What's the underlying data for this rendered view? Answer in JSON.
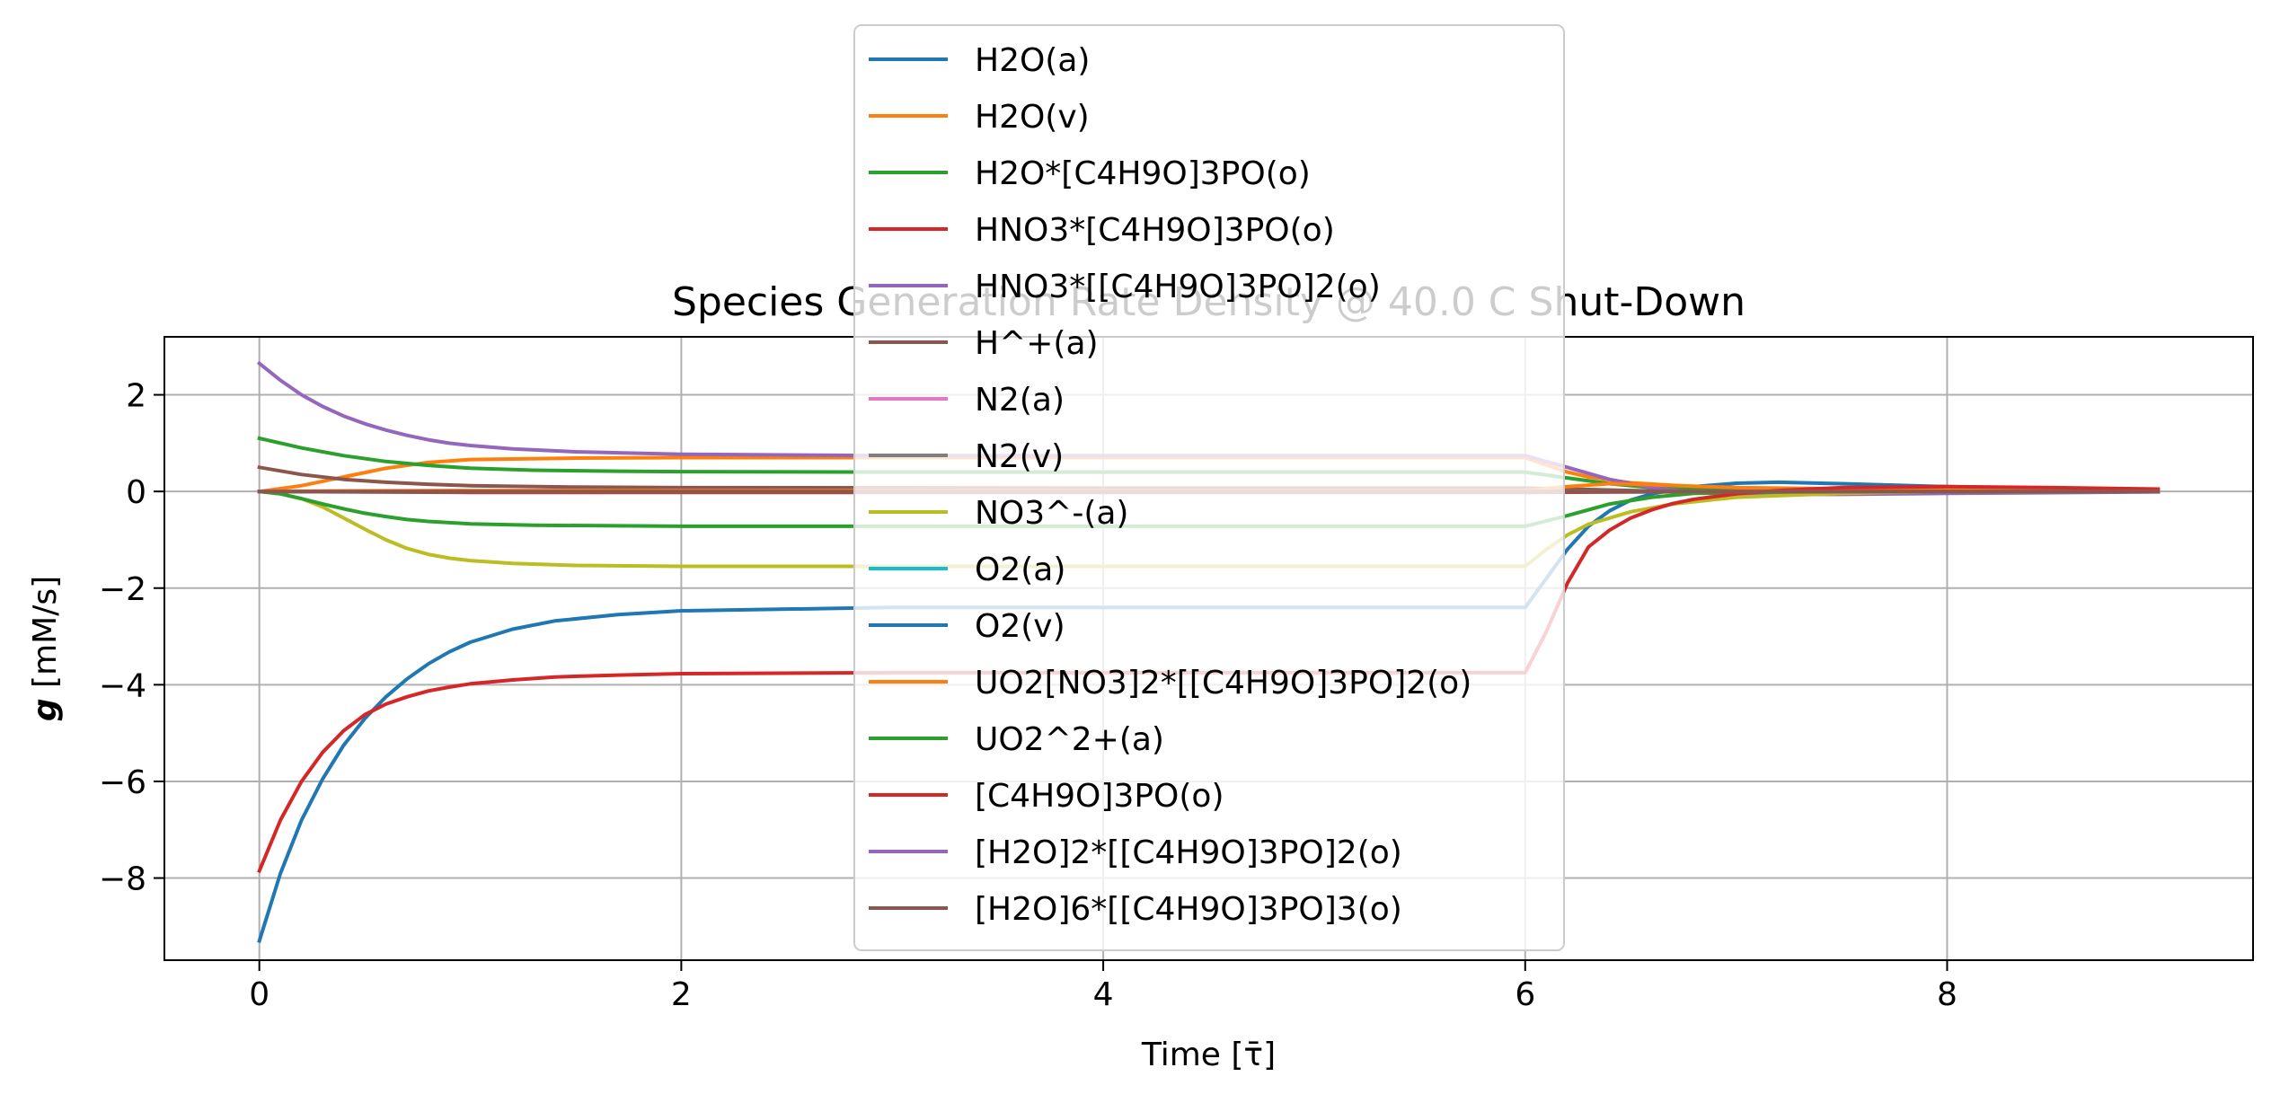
{
  "chart_data": {
    "type": "line",
    "title": "Species Generation Rate Density @ 40.0 C Shut-Down",
    "xlabel": "Time [τ̄]",
    "ylabel_symbol": "g",
    "ylabel_unit": " [mM/s]",
    "xlim": [
      -0.45,
      9.45
    ],
    "ylim": [
      -9.7,
      3.2
    ],
    "xticks": [
      0,
      2,
      4,
      6,
      8
    ],
    "yticks": [
      -8,
      -6,
      -4,
      -2,
      0,
      2
    ],
    "xtick_labels": [
      "0",
      "2",
      "4",
      "6",
      "8"
    ],
    "ytick_labels": [
      "−8",
      "−6",
      "−4",
      "−2",
      "0",
      "2"
    ],
    "grid": true,
    "legend_position": "upper-center",
    "series": [
      {
        "name": "H2O(a)",
        "color": "#1f77b4",
        "points": [
          [
            0,
            -9.3
          ],
          [
            0.1,
            -7.9
          ],
          [
            0.2,
            -6.8
          ],
          [
            0.3,
            -5.95
          ],
          [
            0.4,
            -5.25
          ],
          [
            0.5,
            -4.7
          ],
          [
            0.6,
            -4.25
          ],
          [
            0.7,
            -3.88
          ],
          [
            0.8,
            -3.57
          ],
          [
            0.9,
            -3.32
          ],
          [
            1.0,
            -3.12
          ],
          [
            1.2,
            -2.85
          ],
          [
            1.4,
            -2.68
          ],
          [
            1.7,
            -2.55
          ],
          [
            2.0,
            -2.47
          ],
          [
            3.0,
            -2.4
          ],
          [
            4.0,
            -2.4
          ],
          [
            5.0,
            -2.4
          ],
          [
            6.0,
            -2.4
          ],
          [
            6.1,
            -1.8
          ],
          [
            6.2,
            -1.2
          ],
          [
            6.3,
            -0.72
          ],
          [
            6.4,
            -0.4
          ],
          [
            6.5,
            -0.18
          ],
          [
            6.6,
            -0.05
          ],
          [
            6.8,
            0.1
          ],
          [
            7.0,
            0.17
          ],
          [
            7.2,
            0.19
          ],
          [
            7.5,
            0.16
          ],
          [
            8.0,
            0.1
          ],
          [
            8.5,
            0.06
          ],
          [
            9.0,
            0.03
          ]
        ]
      },
      {
        "name": "H2O(v)",
        "color": "#ff7f0e",
        "points": [
          [
            0,
            0.0
          ],
          [
            0.2,
            0.12
          ],
          [
            0.4,
            0.3
          ],
          [
            0.6,
            0.48
          ],
          [
            0.8,
            0.6
          ],
          [
            1.0,
            0.66
          ],
          [
            1.5,
            0.69
          ],
          [
            2.0,
            0.7
          ],
          [
            3.0,
            0.7
          ],
          [
            4.0,
            0.7
          ],
          [
            5.0,
            0.7
          ],
          [
            6.0,
            0.7
          ],
          [
            6.1,
            0.55
          ],
          [
            6.2,
            0.4
          ],
          [
            6.3,
            0.3
          ],
          [
            6.5,
            0.18
          ],
          [
            6.8,
            0.1
          ],
          [
            7.2,
            0.06
          ],
          [
            8.0,
            0.03
          ],
          [
            9.0,
            0.01
          ]
        ]
      },
      {
        "name": "H2O*[C4H9O]3PO(o)",
        "color": "#2ca02c",
        "points": [
          [
            0,
            1.1
          ],
          [
            0.2,
            0.9
          ],
          [
            0.4,
            0.74
          ],
          [
            0.6,
            0.62
          ],
          [
            0.8,
            0.54
          ],
          [
            1.0,
            0.48
          ],
          [
            1.3,
            0.44
          ],
          [
            1.7,
            0.42
          ],
          [
            2.0,
            0.41
          ],
          [
            3.0,
            0.4
          ],
          [
            4.0,
            0.4
          ],
          [
            5.0,
            0.4
          ],
          [
            6.0,
            0.4
          ],
          [
            6.2,
            0.28
          ],
          [
            6.4,
            0.16
          ],
          [
            6.6,
            0.08
          ],
          [
            7.0,
            0.03
          ],
          [
            8.0,
            0.01
          ],
          [
            9.0,
            0.0
          ]
        ]
      },
      {
        "name": "HNO3*[C4H9O]3PO(o)",
        "color": "#d62728",
        "points": [
          [
            0,
            0.0
          ],
          [
            1.0,
            -0.02
          ],
          [
            2.0,
            -0.02
          ],
          [
            4.0,
            -0.02
          ],
          [
            6.0,
            -0.02
          ],
          [
            6.5,
            -0.01
          ],
          [
            7.5,
            0.0
          ],
          [
            9.0,
            0.0
          ]
        ]
      },
      {
        "name": "HNO3*[[C4H9O]3PO]2(o)",
        "color": "#9467bd",
        "points": [
          [
            0,
            2.65
          ],
          [
            0.1,
            2.3
          ],
          [
            0.2,
            2.0
          ],
          [
            0.3,
            1.76
          ],
          [
            0.4,
            1.56
          ],
          [
            0.5,
            1.4
          ],
          [
            0.6,
            1.27
          ],
          [
            0.7,
            1.16
          ],
          [
            0.8,
            1.07
          ],
          [
            0.9,
            1.0
          ],
          [
            1.0,
            0.95
          ],
          [
            1.2,
            0.88
          ],
          [
            1.5,
            0.82
          ],
          [
            2.0,
            0.77
          ],
          [
            3.0,
            0.74
          ],
          [
            4.0,
            0.74
          ],
          [
            5.0,
            0.74
          ],
          [
            6.0,
            0.74
          ],
          [
            6.2,
            0.5
          ],
          [
            6.4,
            0.25
          ],
          [
            6.6,
            0.08
          ],
          [
            6.8,
            -0.02
          ],
          [
            7.0,
            -0.06
          ],
          [
            7.5,
            -0.06
          ],
          [
            8.0,
            -0.04
          ],
          [
            9.0,
            -0.01
          ]
        ]
      },
      {
        "name": "H^+(a)",
        "color": "#8c564b",
        "points": [
          [
            0,
            0.5
          ],
          [
            0.2,
            0.35
          ],
          [
            0.4,
            0.25
          ],
          [
            0.6,
            0.19
          ],
          [
            0.8,
            0.15
          ],
          [
            1.0,
            0.12
          ],
          [
            1.5,
            0.09
          ],
          [
            2.0,
            0.08
          ],
          [
            4.0,
            0.07
          ],
          [
            6.0,
            0.07
          ],
          [
            6.3,
            0.04
          ],
          [
            6.6,
            0.01
          ],
          [
            7.0,
            0.0
          ],
          [
            9.0,
            0.0
          ]
        ]
      },
      {
        "name": "N2(a)",
        "color": "#e377c2",
        "points": [
          [
            0,
            0.0
          ],
          [
            2.0,
            0.0
          ],
          [
            4.0,
            0.0
          ],
          [
            6.0,
            0.0
          ],
          [
            9.0,
            0.0
          ]
        ]
      },
      {
        "name": "N2(v)",
        "color": "#7f7f7f",
        "points": [
          [
            0,
            0.0
          ],
          [
            2.0,
            0.0
          ],
          [
            4.0,
            0.0
          ],
          [
            6.0,
            0.0
          ],
          [
            9.0,
            0.0
          ]
        ]
      },
      {
        "name": "NO3^-(a)",
        "color": "#bcbd22",
        "points": [
          [
            0,
            0.0
          ],
          [
            0.1,
            -0.05
          ],
          [
            0.2,
            -0.15
          ],
          [
            0.3,
            -0.32
          ],
          [
            0.4,
            -0.55
          ],
          [
            0.5,
            -0.78
          ],
          [
            0.6,
            -1.0
          ],
          [
            0.7,
            -1.18
          ],
          [
            0.8,
            -1.3
          ],
          [
            0.9,
            -1.38
          ],
          [
            1.0,
            -1.43
          ],
          [
            1.2,
            -1.49
          ],
          [
            1.5,
            -1.53
          ],
          [
            2.0,
            -1.55
          ],
          [
            3.0,
            -1.55
          ],
          [
            4.0,
            -1.55
          ],
          [
            5.0,
            -1.55
          ],
          [
            6.0,
            -1.55
          ],
          [
            6.1,
            -1.2
          ],
          [
            6.2,
            -0.9
          ],
          [
            6.3,
            -0.68
          ],
          [
            6.5,
            -0.42
          ],
          [
            6.7,
            -0.26
          ],
          [
            7.0,
            -0.12
          ],
          [
            7.5,
            -0.04
          ],
          [
            8.0,
            0.0
          ],
          [
            9.0,
            0.01
          ]
        ]
      },
      {
        "name": "O2(a)",
        "color": "#17becf",
        "points": [
          [
            0,
            0.0
          ],
          [
            2.0,
            0.0
          ],
          [
            4.0,
            0.0
          ],
          [
            6.0,
            0.0
          ],
          [
            9.0,
            0.0
          ]
        ]
      },
      {
        "name": "O2(v)",
        "color": "#1f77b4",
        "points": [
          [
            0,
            0.0
          ],
          [
            2.0,
            0.0
          ],
          [
            4.0,
            0.0
          ],
          [
            6.0,
            0.0
          ],
          [
            9.0,
            0.0
          ]
        ]
      },
      {
        "name": "UO2[NO3]2*[[C4H9O]3PO]2(o)",
        "color": "#ff7f0e",
        "points": [
          [
            0,
            0.0
          ],
          [
            0.3,
            0.01
          ],
          [
            1.0,
            0.02
          ],
          [
            2.0,
            0.02
          ],
          [
            6.0,
            0.02
          ],
          [
            6.2,
            0.1
          ],
          [
            6.4,
            0.16
          ],
          [
            6.6,
            0.14
          ],
          [
            7.0,
            0.08
          ],
          [
            8.0,
            0.03
          ],
          [
            9.0,
            0.01
          ]
        ]
      },
      {
        "name": "UO2^2+(a)",
        "color": "#2ca02c",
        "points": [
          [
            0,
            0.0
          ],
          [
            0.1,
            -0.05
          ],
          [
            0.2,
            -0.15
          ],
          [
            0.3,
            -0.26
          ],
          [
            0.4,
            -0.36
          ],
          [
            0.5,
            -0.45
          ],
          [
            0.6,
            -0.52
          ],
          [
            0.7,
            -0.58
          ],
          [
            0.8,
            -0.62
          ],
          [
            1.0,
            -0.67
          ],
          [
            1.3,
            -0.7
          ],
          [
            1.7,
            -0.71
          ],
          [
            2.0,
            -0.72
          ],
          [
            3.0,
            -0.72
          ],
          [
            4.0,
            -0.72
          ],
          [
            5.0,
            -0.72
          ],
          [
            6.0,
            -0.72
          ],
          [
            6.2,
            -0.5
          ],
          [
            6.4,
            -0.26
          ],
          [
            6.6,
            -0.12
          ],
          [
            6.8,
            -0.04
          ],
          [
            7.2,
            -0.01
          ],
          [
            8.0,
            0.0
          ],
          [
            9.0,
            0.0
          ]
        ]
      },
      {
        "name": "[C4H9O]3PO(o)",
        "color": "#d62728",
        "points": [
          [
            0,
            -7.85
          ],
          [
            0.1,
            -6.8
          ],
          [
            0.2,
            -6.0
          ],
          [
            0.3,
            -5.4
          ],
          [
            0.4,
            -4.95
          ],
          [
            0.5,
            -4.62
          ],
          [
            0.6,
            -4.4
          ],
          [
            0.7,
            -4.25
          ],
          [
            0.8,
            -4.13
          ],
          [
            0.9,
            -4.05
          ],
          [
            1.0,
            -3.98
          ],
          [
            1.2,
            -3.9
          ],
          [
            1.4,
            -3.84
          ],
          [
            1.7,
            -3.8
          ],
          [
            2.0,
            -3.77
          ],
          [
            3.0,
            -3.75
          ],
          [
            4.0,
            -3.75
          ],
          [
            5.0,
            -3.75
          ],
          [
            6.0,
            -3.75
          ],
          [
            6.1,
            -2.9
          ],
          [
            6.2,
            -1.9
          ],
          [
            6.3,
            -1.15
          ],
          [
            6.4,
            -0.8
          ],
          [
            6.5,
            -0.55
          ],
          [
            6.6,
            -0.38
          ],
          [
            6.7,
            -0.25
          ],
          [
            6.8,
            -0.16
          ],
          [
            7.0,
            -0.05
          ],
          [
            7.2,
            0.02
          ],
          [
            7.5,
            0.08
          ],
          [
            8.0,
            0.1
          ],
          [
            8.5,
            0.08
          ],
          [
            9.0,
            0.05
          ]
        ]
      },
      {
        "name": "[H2O]2*[[C4H9O]3PO]2(o)",
        "color": "#9467bd",
        "points": [
          [
            0,
            0.0
          ],
          [
            2.0,
            0.0
          ],
          [
            4.0,
            0.0
          ],
          [
            6.0,
            0.0
          ],
          [
            9.0,
            0.0
          ]
        ]
      },
      {
        "name": "[H2O]6*[[C4H9O]3PO]3(o)",
        "color": "#8c564b",
        "points": [
          [
            0,
            0.0
          ],
          [
            1.0,
            0.0
          ],
          [
            2.0,
            0.0
          ],
          [
            4.0,
            0.0
          ],
          [
            6.0,
            0.0
          ],
          [
            9.0,
            0.0
          ]
        ]
      }
    ]
  }
}
